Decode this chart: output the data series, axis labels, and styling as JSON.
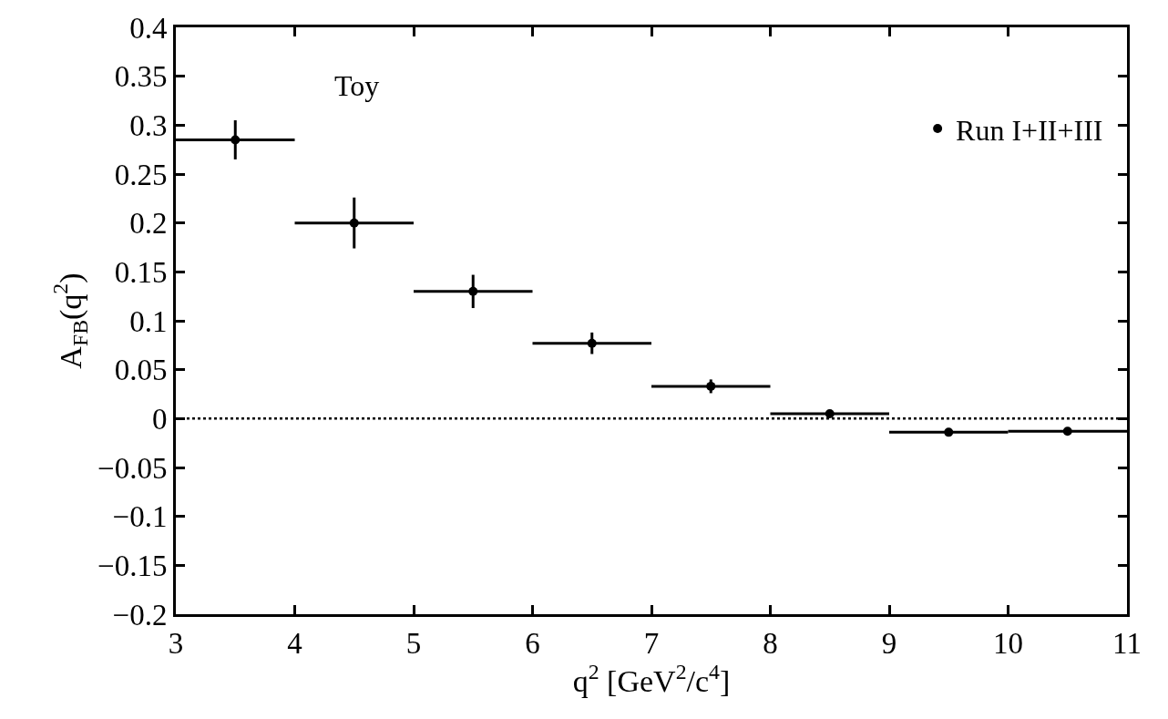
{
  "chart_data": {
    "type": "scatter",
    "xlabel": "q$^{2}$ [GeV$^{2}$/c$^{4}$]",
    "ylabel": "A$_{FB}$(q$^{2}$)",
    "annotations": [
      "Toy"
    ],
    "x": [
      3.5,
      4.5,
      5.5,
      6.5,
      7.5,
      8.5,
      9.5,
      10.5
    ],
    "series": [
      {
        "name": "Run I+II+III",
        "color": "#000000",
        "values": [
          0.285,
          0.2,
          0.13,
          0.077,
          0.033,
          0.005,
          -0.014,
          -0.013
        ],
        "errors": [
          0.02,
          0.026,
          0.017,
          0.011,
          0.007,
          0.003,
          null,
          null
        ],
        "xerrors": [
          0.5,
          0.5,
          0.5,
          0.5,
          0.5,
          0.5,
          0.5,
          0.5
        ]
      }
    ],
    "xlim": [
      3,
      11
    ],
    "xticks": [
      3,
      4,
      5,
      6,
      7,
      8,
      9,
      10,
      11
    ],
    "ylim": [
      -0.2,
      0.4
    ],
    "yticks": [
      {
        "value": -0.2,
        "label": "−0.2"
      },
      {
        "value": -0.15,
        "label": "−0.15"
      },
      {
        "value": -0.1,
        "label": "−0.1"
      },
      {
        "value": -0.05,
        "label": "−0.05"
      },
      0,
      0.05,
      0.1,
      0.15,
      0.2,
      0.25,
      0.3,
      0.35,
      0.4
    ],
    "ref_lines": [
      {
        "axis": "y",
        "value": 0,
        "color": "#000000",
        "line_style": "dotted"
      }
    ],
    "marker": "circle",
    "legend": "top right"
  }
}
